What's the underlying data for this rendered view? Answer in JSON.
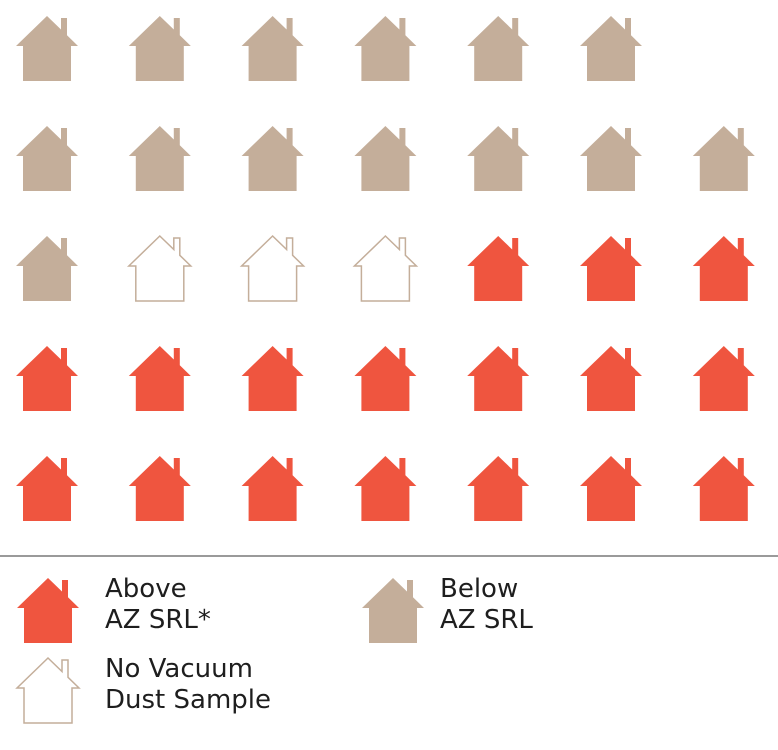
{
  "chart_data": {
    "type": "pictogram",
    "series": [
      {
        "name": "Below\nAZ SRL",
        "color": "#c4ae9a",
        "filled": true,
        "value": 14
      },
      {
        "name": "No Vacuum\nDust Sample",
        "color": "#c4ae9a",
        "filled": false,
        "value": 3
      },
      {
        "name": "Above\nAZ SRL*",
        "color": "#ef553f",
        "filled": true,
        "value": 17
      }
    ]
  }
}
